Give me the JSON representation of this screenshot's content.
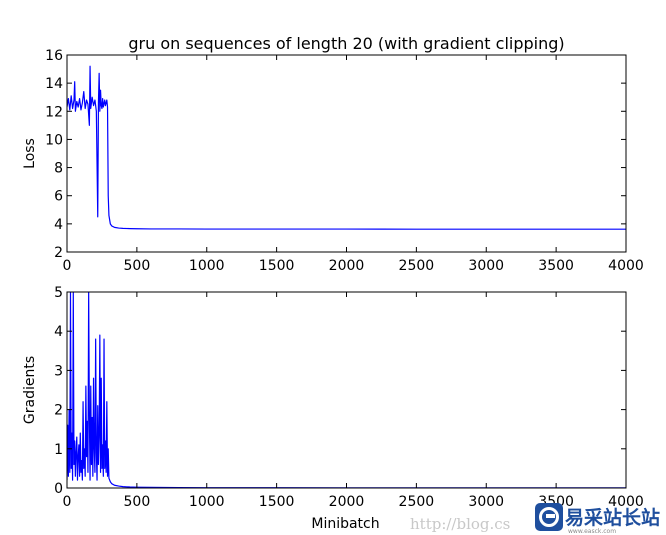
{
  "chart_data": [
    {
      "type": "line",
      "title": "gru on sequences of length 20 (with gradient clipping)",
      "xlabel": "",
      "ylabel": "Loss",
      "xlim": [
        0,
        4000
      ],
      "ylim": [
        2,
        16
      ],
      "xticks": [
        0,
        500,
        1000,
        1500,
        2000,
        2500,
        3000,
        3500,
        4000
      ],
      "yticks": [
        2,
        4,
        6,
        8,
        10,
        12,
        14,
        16
      ],
      "grid": false,
      "color": "#0000ff",
      "series": [
        {
          "x": [
            0,
            10,
            20,
            30,
            40,
            50,
            55,
            60,
            70,
            80,
            90,
            100,
            110,
            120,
            130,
            140,
            150,
            160,
            165,
            170,
            180,
            190,
            200,
            210,
            220,
            225,
            230,
            235,
            240,
            245,
            250,
            255,
            260,
            270,
            275,
            280,
            285,
            290,
            295,
            300,
            310,
            320,
            340,
            370,
            400,
            450,
            500,
            600,
            800,
            1000,
            1500,
            2000,
            2500,
            3000,
            3500,
            4000
          ],
          "y": [
            12.3,
            12.9,
            12.1,
            13.1,
            12.2,
            12.8,
            14.1,
            12.0,
            12.7,
            12.3,
            12.9,
            12.1,
            12.6,
            13.4,
            12.2,
            12.8,
            12.5,
            11.0,
            15.2,
            12.2,
            13.0,
            12.4,
            12.8,
            12.0,
            4.5,
            12.6,
            14.7,
            12.0,
            13.5,
            12.4,
            12.2,
            12.9,
            12.3,
            12.8,
            12.4,
            12.6,
            12.8,
            12.3,
            6.0,
            4.6,
            4.0,
            3.85,
            3.75,
            3.7,
            3.68,
            3.66,
            3.65,
            3.64,
            3.64,
            3.63,
            3.63,
            3.63,
            3.62,
            3.62,
            3.62,
            3.62
          ]
        }
      ]
    },
    {
      "type": "line",
      "title": "",
      "xlabel": "Minibatch",
      "ylabel": "Gradients",
      "xlim": [
        0,
        4000
      ],
      "ylim": [
        0,
        5
      ],
      "xticks": [
        0,
        500,
        1000,
        1500,
        2000,
        2500,
        3000,
        3500,
        4000
      ],
      "yticks": [
        0,
        1,
        2,
        3,
        4,
        5
      ],
      "grid": false,
      "color": "#0000ff",
      "series": [
        {
          "x": [
            0,
            5,
            10,
            15,
            20,
            25,
            30,
            35,
            40,
            45,
            50,
            55,
            60,
            65,
            70,
            75,
            80,
            85,
            90,
            95,
            100,
            105,
            110,
            115,
            120,
            125,
            130,
            135,
            140,
            145,
            150,
            155,
            160,
            165,
            170,
            175,
            180,
            185,
            190,
            195,
            200,
            205,
            210,
            215,
            220,
            225,
            230,
            235,
            240,
            245,
            250,
            255,
            260,
            265,
            270,
            275,
            280,
            285,
            290,
            295,
            300,
            310,
            320,
            340,
            370,
            400,
            450,
            500,
            600,
            800,
            1000,
            1500,
            2000,
            2500,
            3000,
            3500,
            4000
          ],
          "y": [
            0.2,
            1.6,
            0.3,
            2.0,
            0.4,
            5.0,
            0.5,
            1.4,
            0.2,
            5.0,
            0.6,
            1.2,
            0.3,
            0.9,
            1.3,
            0.2,
            0.8,
            1.1,
            0.3,
            1.4,
            0.4,
            0.7,
            0.2,
            2.2,
            0.5,
            1.0,
            0.3,
            2.6,
            0.8,
            1.7,
            0.4,
            5.0,
            1.9,
            0.2,
            2.6,
            0.6,
            1.8,
            0.3,
            2.8,
            1.0,
            0.4,
            3.8,
            0.9,
            0.2,
            2.1,
            0.6,
            1.3,
            3.9,
            0.4,
            2.8,
            0.5,
            1.1,
            0.3,
            3.8,
            0.5,
            1.2,
            0.4,
            2.2,
            0.3,
            1.0,
            0.25,
            0.16,
            0.11,
            0.07,
            0.05,
            0.035,
            0.025,
            0.02,
            0.015,
            0.01,
            0.008,
            0.006,
            0.005,
            0.005,
            0.004,
            0.004,
            0.004
          ]
        }
      ]
    }
  ],
  "watermark": {
    "url_text": "http://blog.cs",
    "brand_text": "易采站长站",
    "brand_sub": "www.easck.com",
    "brand_color": "#1f4f9e"
  }
}
